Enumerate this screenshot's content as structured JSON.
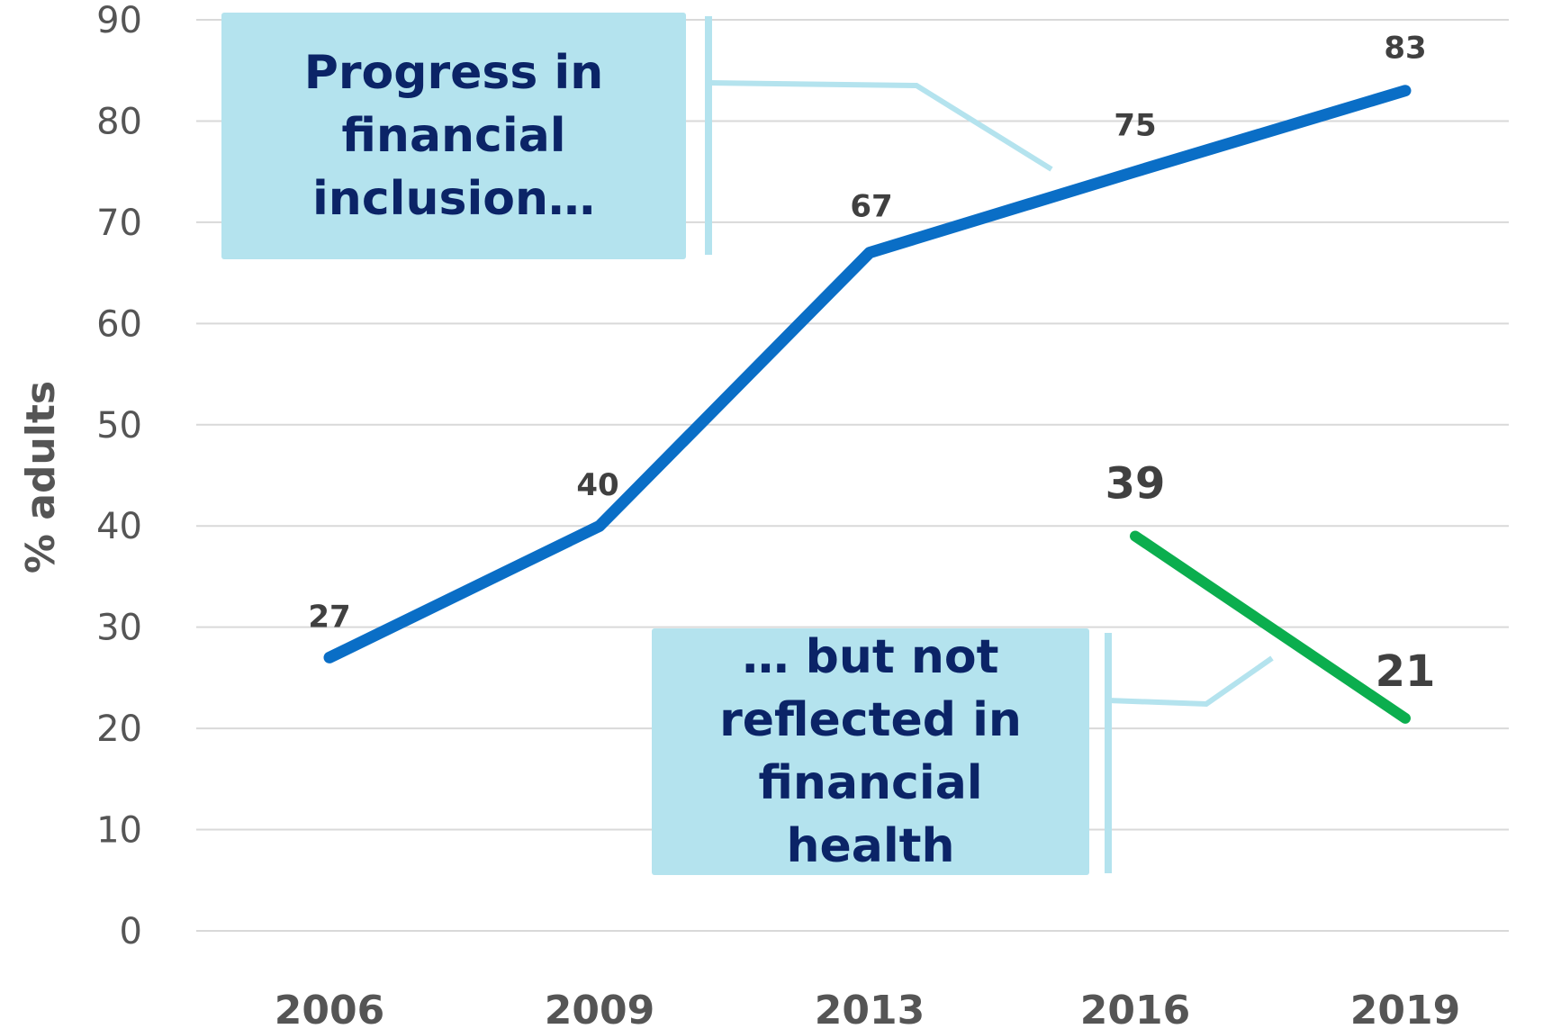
{
  "chart_data": {
    "type": "line",
    "categories": [
      "2006",
      "2009",
      "2013",
      "2016",
      "2019"
    ],
    "ylabel": "% adults",
    "ylim": [
      0,
      90
    ],
    "yticks": [
      0,
      10,
      20,
      30,
      40,
      50,
      60,
      70,
      80,
      90
    ],
    "grid": true,
    "series": [
      {
        "values": [
          27,
          40,
          67,
          75,
          83
        ],
        "color": "#0a6ec6",
        "labels": [
          "27",
          "40",
          "67",
          "75",
          "83"
        ]
      },
      {
        "values": [
          null,
          null,
          null,
          39,
          21
        ],
        "color": "#0bae4e",
        "labels": [
          "",
          "",
          "",
          "39",
          "21"
        ]
      }
    ],
    "annotations": [
      "Progress in financial inclusion…",
      "… but not reflected in financial health"
    ]
  },
  "colors": {
    "callout_bg": "#b4e3ee",
    "callout_text": "#0b2467",
    "bracket": "#b4e3ee",
    "grid": "#d9d9d9"
  }
}
